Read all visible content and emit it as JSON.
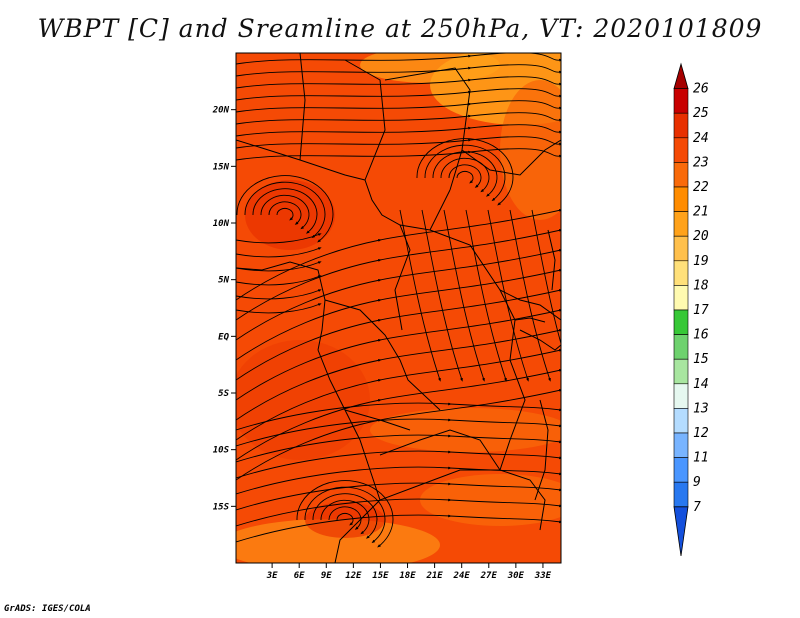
{
  "title": "WBPT [C] and Sreamline at 250hPa, VT: 2020101809",
  "credit": "GrADS: IGES/COLA",
  "map": {
    "lat_range": [
      -20,
      25
    ],
    "lon_range": [
      -1,
      35
    ],
    "lat_ticks": [
      {
        "value": 20,
        "label": "20N"
      },
      {
        "value": 15,
        "label": "15N"
      },
      {
        "value": 10,
        "label": "10N"
      },
      {
        "value": 5,
        "label": "5N"
      },
      {
        "value": 0,
        "label": "EQ"
      },
      {
        "value": -5,
        "label": "5S"
      },
      {
        "value": -10,
        "label": "10S"
      },
      {
        "value": -15,
        "label": "15S"
      }
    ],
    "lon_ticks": [
      {
        "value": 3,
        "label": "3E"
      },
      {
        "value": 6,
        "label": "6E"
      },
      {
        "value": 9,
        "label": "9E"
      },
      {
        "value": 12,
        "label": "12E"
      },
      {
        "value": 15,
        "label": "15E"
      },
      {
        "value": 18,
        "label": "18E"
      },
      {
        "value": 21,
        "label": "21E"
      },
      {
        "value": 24,
        "label": "24E"
      },
      {
        "value": 27,
        "label": "27E"
      },
      {
        "value": 30,
        "label": "30E"
      },
      {
        "value": 33,
        "label": "33E"
      }
    ],
    "field_colors": {
      "dominant": "#F54A05",
      "warmer": "#E83000",
      "cooler": "#F96A0A",
      "coolest": "#FFA21A"
    }
  },
  "colorbar": {
    "labels": [
      "26",
      "25",
      "24",
      "23",
      "22",
      "21",
      "20",
      "19",
      "18",
      "17",
      "16",
      "15",
      "14",
      "13",
      "12",
      "11",
      "9",
      "7"
    ],
    "colors": [
      "#A50000",
      "#C80000",
      "#E83000",
      "#F54A05",
      "#F96A0A",
      "#FF8C00",
      "#FFA21A",
      "#FFC04C",
      "#FFE07A",
      "#FFFAB0",
      "#37C837",
      "#6ED26E",
      "#A8E6A0",
      "#E6F8F0",
      "#B4DCFF",
      "#78B4FF",
      "#4A96FF",
      "#2878F0",
      "#1450DC"
    ]
  }
}
